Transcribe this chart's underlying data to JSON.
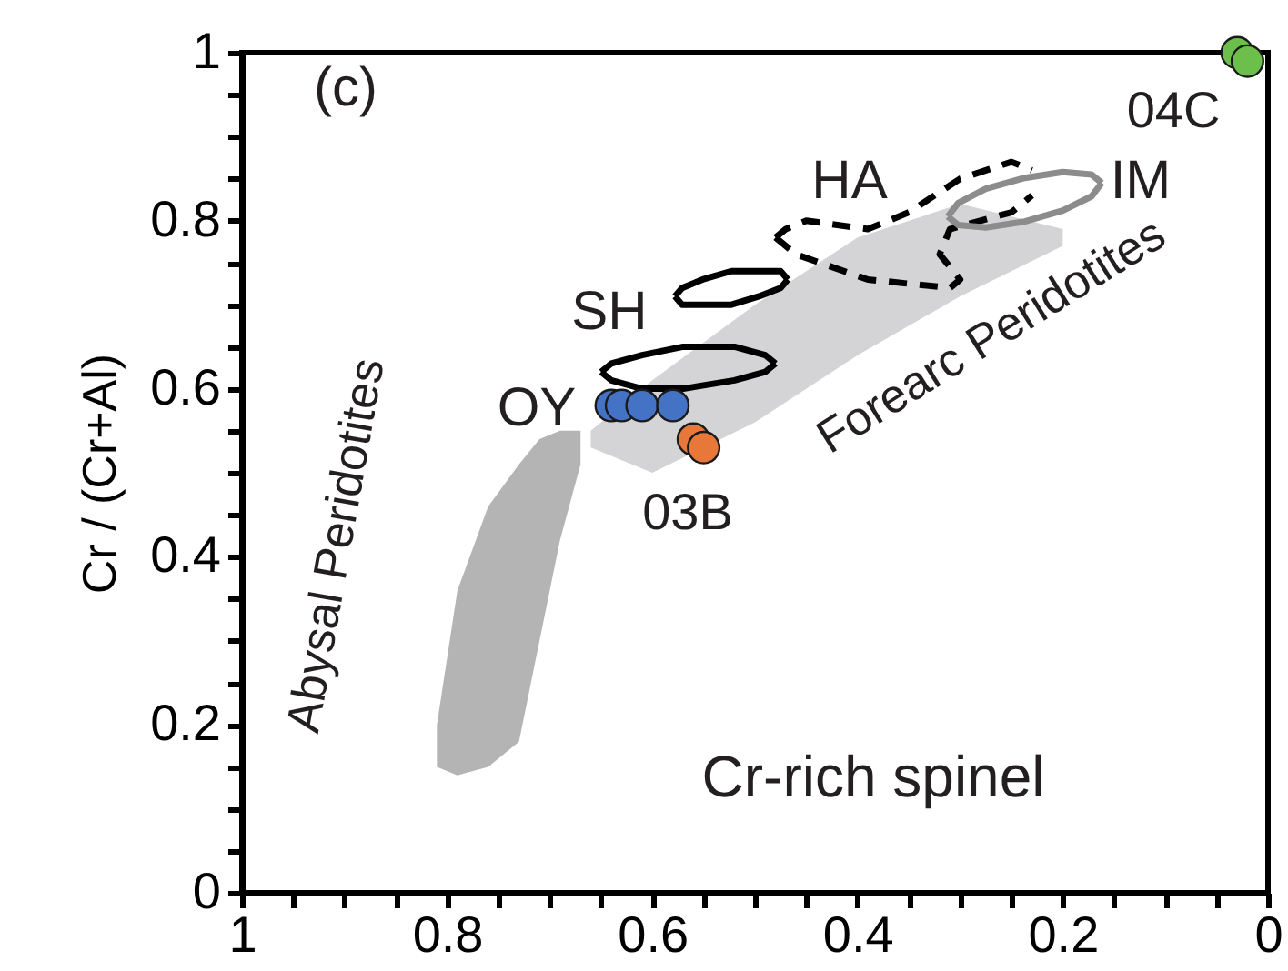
{
  "chart_data": {
    "type": "scatter",
    "ylabel": "Cr / (Cr+Al)",
    "xlim": [
      1,
      0
    ],
    "xticks": [
      1,
      {
        "value": 0.95,
        "label": null
      },
      {
        "value": 0.9,
        "label": null
      },
      {
        "value": 0.85,
        "label": null
      },
      0.8,
      {
        "value": 0.75,
        "label": null
      },
      {
        "value": 0.7,
        "label": null
      },
      {
        "value": 0.65,
        "label": null
      },
      0.6,
      {
        "value": 0.55,
        "label": null
      },
      {
        "value": 0.5,
        "label": null
      },
      {
        "value": 0.45,
        "label": null
      },
      0.4,
      {
        "value": 0.35,
        "label": null
      },
      {
        "value": 0.3,
        "label": null
      },
      {
        "value": 0.25,
        "label": null
      },
      0.2,
      {
        "value": 0.15,
        "label": null
      },
      {
        "value": 0.1,
        "label": null
      },
      {
        "value": 0.05,
        "label": null
      },
      0
    ],
    "ylim": [
      0,
      1
    ],
    "yticks": [
      0,
      {
        "value": 0.05,
        "label": null
      },
      {
        "value": 0.1,
        "label": null
      },
      {
        "value": 0.15,
        "label": null
      },
      0.2,
      {
        "value": 0.25,
        "label": null
      },
      {
        "value": 0.3,
        "label": null
      },
      {
        "value": 0.35,
        "label": null
      },
      0.4,
      {
        "value": 0.45,
        "label": null
      },
      {
        "value": 0.5,
        "label": null
      },
      {
        "value": 0.55,
        "label": null
      },
      0.6,
      {
        "value": 0.65,
        "label": null
      },
      {
        "value": 0.7,
        "label": null
      },
      {
        "value": 0.75,
        "label": null
      },
      0.8,
      {
        "value": 0.85,
        "label": null
      },
      {
        "value": 0.9,
        "label": null
      },
      {
        "value": 0.95,
        "label": null
      },
      1
    ],
    "grid": false,
    "series": [
      {
        "type": "line",
        "color": "#d4d4d6",
        "x": [
          0.66,
          0.6,
          0.5,
          0.4,
          0.3,
          0.2
        ],
        "values": [
          null,
          null,
          null,
          null,
          null,
          null
        ],
        "lower": [
          0.53,
          0.5,
          0.56,
          0.64,
          0.71,
          0.77
        ],
        "upper": [
          0.55,
          0.61,
          0.7,
          0.78,
          0.82,
          0.79
        ]
      },
      {
        "type": "line",
        "color": "#b4b4b4",
        "x": [
          0.81,
          0.79,
          0.76,
          0.73,
          0.71,
          0.69,
          0.67
        ],
        "values": [
          null,
          null,
          null,
          null,
          null,
          null,
          null
        ],
        "lower": [
          0.15,
          0.14,
          0.15,
          0.18,
          0.3,
          0.42,
          0.51
        ],
        "upper": [
          0.2,
          0.36,
          0.46,
          0.51,
          0.54,
          0.55,
          0.55
        ]
      },
      {
        "type": "line",
        "marker": "none",
        "color": "#000000",
        "line_style": "solid",
        "x": [
          0.578,
          0.571,
          0.551,
          0.523,
          0.496,
          0.475,
          0.468
        ],
        "values": [
          0.71,
          0.72,
          0.73,
          0.74,
          0.74,
          0.74,
          0.73
        ]
      },
      {
        "type": "line",
        "marker": "none",
        "color": "#000000",
        "line_style": "solid",
        "x": [
          0.578,
          0.571,
          0.551,
          0.523,
          0.496,
          0.475,
          0.468
        ],
        "values": [
          0.71,
          0.7,
          0.7,
          0.7,
          0.71,
          0.72,
          0.73
        ]
      },
      {
        "type": "line",
        "marker": "none",
        "color": "#000000",
        "line_style": "solid",
        "x": [
          0.65,
          0.64,
          0.61,
          0.57,
          0.52,
          0.49,
          0.48
        ],
        "values": [
          0.62,
          0.63,
          0.64,
          0.65,
          0.65,
          0.64,
          0.63
        ]
      },
      {
        "type": "line",
        "marker": "none",
        "color": "#000000",
        "line_style": "solid",
        "x": [
          0.65,
          0.64,
          0.61,
          0.57,
          0.52,
          0.49,
          0.48
        ],
        "values": [
          0.62,
          0.61,
          0.6,
          0.6,
          0.61,
          0.62,
          0.63
        ]
      },
      {
        "type": "line",
        "marker": "none",
        "color": "#000000",
        "line_style": "dashed",
        "x": [
          0.48,
          0.47,
          0.45,
          0.39,
          0.35,
          0.3,
          0.25,
          0.23
        ],
        "values": [
          0.78,
          0.79,
          0.8,
          0.79,
          0.81,
          0.85,
          0.87,
          0.86
        ]
      },
      {
        "type": "line",
        "marker": "none",
        "color": "#000000",
        "line_style": "dashed",
        "x": [
          0.48,
          0.46,
          0.39,
          0.31,
          0.3,
          0.32,
          0.31,
          0.25,
          0.23
        ],
        "values": [
          0.78,
          0.76,
          0.73,
          0.72,
          0.73,
          0.76,
          0.79,
          0.81,
          0.83
        ]
      },
      {
        "type": "line",
        "marker": "none",
        "color": "#8c8c8c",
        "line_style": "solid",
        "x": [
          0.312,
          0.302,
          0.275,
          0.237,
          0.2,
          0.172,
          0.162
        ],
        "values": [
          0.805,
          0.821,
          0.838,
          0.851,
          0.858,
          0.855,
          0.845
        ]
      },
      {
        "type": "line",
        "marker": "none",
        "color": "#8c8c8c",
        "line_style": "solid",
        "x": [
          0.312,
          0.302,
          0.275,
          0.237,
          0.2,
          0.172,
          0.162
        ],
        "values": [
          0.805,
          0.795,
          0.792,
          0.799,
          0.812,
          0.829,
          0.845
        ]
      },
      {
        "marker": "circle",
        "color": "#4472c4",
        "x": [
          0.64,
          0.63,
          0.61,
          0.58
        ],
        "values": [
          0.58,
          0.58,
          0.58,
          0.58
        ]
      },
      {
        "marker": "circle",
        "color": "#e8773a",
        "x": [
          0.56,
          0.55
        ],
        "values": [
          0.54,
          0.53
        ]
      },
      {
        "marker": "circle",
        "color": "#6cbf4a",
        "x": [
          0.03,
          0.02
        ],
        "values": [
          1.0,
          0.99
        ]
      }
    ],
    "annotations": [
      "(c)",
      "HA",
      "IM",
      "SH",
      "OY",
      "03B",
      "04C",
      "Cr-rich spinel",
      "Abysal Peridotites",
      "Forearc Peridotites"
    ]
  }
}
